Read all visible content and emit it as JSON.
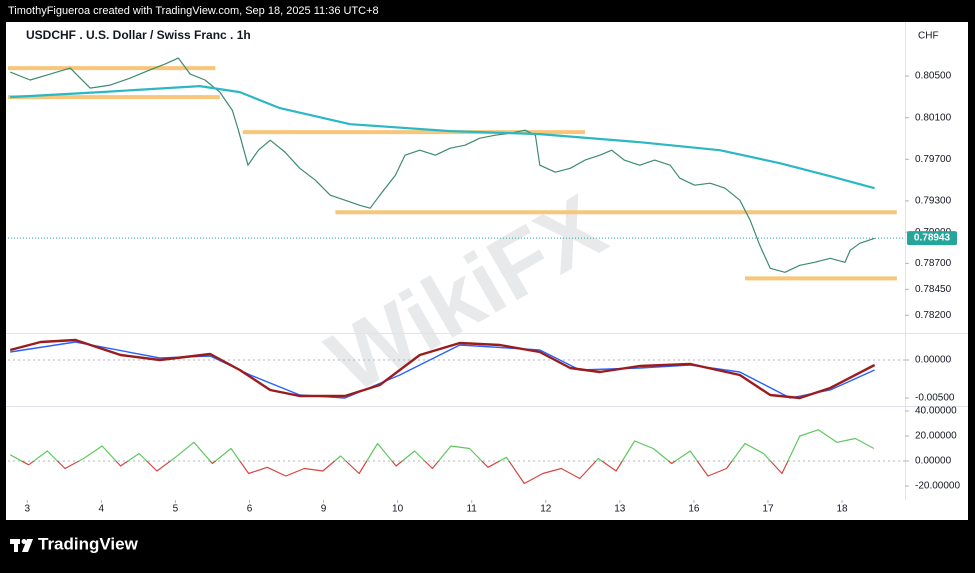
{
  "header": "TimothyFigueroa created with TradingView.com, Sep 18, 2025 11:36 UTC+8",
  "footer": "TradingView",
  "watermark": "WikiFX",
  "chart_data": [
    {
      "type": "line",
      "title": "USDCHF . U.S. Dollar / Swiss Franc . 1h",
      "ylabel": "CHF",
      "xlim": [
        -0.26,
        11.85
      ],
      "xticks": [
        {
          "value": 0,
          "label": "3"
        },
        {
          "value": 1,
          "label": "4"
        },
        {
          "value": 2,
          "label": "5"
        },
        {
          "value": 3,
          "label": "6"
        },
        {
          "value": 4,
          "label": "9"
        },
        {
          "value": 5,
          "label": "10"
        },
        {
          "value": 6,
          "label": "11"
        },
        {
          "value": 7,
          "label": "12"
        },
        {
          "value": 8,
          "label": "13"
        },
        {
          "value": 9,
          "label": "16"
        },
        {
          "value": 10,
          "label": "17"
        },
        {
          "value": 11,
          "label": "18"
        }
      ],
      "ylim": [
        0.7804,
        0.8102
      ],
      "yticks": [
        {
          "value": 0.805,
          "label": "0.80500"
        },
        {
          "value": 0.801,
          "label": "0.80100"
        },
        {
          "value": 0.797,
          "label": "0.79700"
        },
        {
          "value": 0.793,
          "label": "0.79300"
        },
        {
          "value": 0.79,
          "label": "0.79000"
        },
        {
          "value": 0.787,
          "label": "0.78700"
        },
        {
          "value": 0.7845,
          "label": "0.78450"
        },
        {
          "value": 0.782,
          "label": "0.78200"
        }
      ],
      "last_price": 0.78943,
      "last_price_color": "#26a69a",
      "levels_color": "#f7c67a",
      "levels": [
        {
          "value": 0.80577,
          "x": [
            -0.26,
            2.54
          ]
        },
        {
          "value": 0.80298,
          "x": [
            -0.26,
            2.6
          ]
        },
        {
          "value": 0.79961,
          "x": [
            2.91,
            7.53
          ]
        },
        {
          "value": 0.79191,
          "x": [
            4.16,
            11.74
          ]
        },
        {
          "value": 0.78556,
          "x": [
            9.69,
            11.74
          ]
        }
      ],
      "series": [
        {
          "color": "#3d8b6e",
          "width": 1.2,
          "x": [
            -0.23,
            0.04,
            0.31,
            0.58,
            0.85,
            1.12,
            1.39,
            1.65,
            1.86,
            2.04,
            2.2,
            2.4,
            2.6,
            2.77,
            2.85,
            2.98,
            3.12,
            3.28,
            3.48,
            3.68,
            3.89,
            4.09,
            4.29,
            4.49,
            4.63,
            4.76,
            4.97,
            5.1,
            5.3,
            5.51,
            5.71,
            5.91,
            6.11,
            6.32,
            6.52,
            6.72,
            6.86,
            6.92,
            7.13,
            7.33,
            7.53,
            7.73,
            7.89,
            8.06,
            8.27,
            8.47,
            8.68,
            8.81,
            9.01,
            9.22,
            9.42,
            9.62,
            9.76,
            9.89,
            10.03,
            10.23,
            10.43,
            10.63,
            10.84,
            11.04,
            11.11,
            11.24,
            11.44
          ],
          "values": [
            0.80538,
            0.80462,
            0.80519,
            0.80577,
            0.80385,
            0.80413,
            0.80481,
            0.80558,
            0.80615,
            0.80673,
            0.80519,
            0.80462,
            0.80346,
            0.8017,
            0.7998,
            0.79643,
            0.79788,
            0.79884,
            0.79769,
            0.79614,
            0.79499,
            0.79355,
            0.79307,
            0.79258,
            0.7923,
            0.79355,
            0.79547,
            0.7974,
            0.79788,
            0.7974,
            0.79807,
            0.79836,
            0.79903,
            0.79932,
            0.79951,
            0.7998,
            0.79932,
            0.79643,
            0.79576,
            0.79614,
            0.79692,
            0.7974,
            0.79788,
            0.79692,
            0.79643,
            0.79692,
            0.79643,
            0.79518,
            0.79451,
            0.7947,
            0.79422,
            0.79307,
            0.79114,
            0.78873,
            0.78652,
            0.78614,
            0.78681,
            0.7871,
            0.78748,
            0.7871,
            0.78825,
            0.78893,
            0.78941
          ]
        },
        {
          "color": "#2bb7c4",
          "width": 2.2,
          "x": [
            -0.23,
            0.99,
            2.33,
            2.87,
            3.41,
            4.36,
            5.71,
            6.92,
            8.27,
            9.35,
            10.16,
            10.84,
            11.44
          ],
          "values": [
            0.80298,
            0.80346,
            0.80404,
            0.80346,
            0.80192,
            0.80038,
            0.79971,
            0.79942,
            0.79865,
            0.79788,
            0.79663,
            0.79538,
            0.79422
          ]
        }
      ]
    },
    {
      "type": "line",
      "ylim": [
        -0.00592,
        0.00329
      ],
      "yticks": [
        {
          "value": 0,
          "label": "0.00000"
        },
        {
          "value": -0.005,
          "label": "-0.00500"
        }
      ],
      "series": [
        {
          "color": "#2962ff",
          "width": 1.4,
          "x": [
            -0.23,
            0.65,
            1.79,
            2.47,
            3.01,
            3.68,
            4.29,
            5.03,
            5.84,
            6.92,
            7.46,
            8.27,
            8.95,
            9.62,
            10.3,
            10.84,
            11.44
          ],
          "values": [
            0.00105,
            0.00237,
            0.00026,
            0.00053,
            -0.00197,
            -0.00461,
            -0.005,
            -0.00197,
            0.00197,
            0.00132,
            -0.00132,
            -0.00105,
            -0.00066,
            -0.00158,
            -0.005,
            -0.00395,
            -0.00132
          ]
        },
        {
          "color": "#9b1c1c",
          "width": 2.4,
          "x": [
            -0.23,
            0.18,
            0.65,
            1.26,
            1.79,
            2.47,
            2.87,
            3.28,
            3.68,
            4.29,
            4.76,
            5.3,
            5.84,
            6.38,
            6.92,
            7.33,
            7.73,
            8.27,
            8.95,
            9.62,
            10.03,
            10.43,
            10.84,
            11.44
          ],
          "values": [
            0.00132,
            0.00237,
            0.00263,
            0.00066,
            0,
            0.00079,
            -0.00132,
            -0.00395,
            -0.00474,
            -0.00474,
            -0.00329,
            0.00066,
            0.00224,
            0.00197,
            0.00105,
            -0.00105,
            -0.00158,
            -0.00079,
            -0.00053,
            -0.00197,
            -0.00461,
            -0.005,
            -0.00368,
            -0.00066
          ]
        }
      ]
    },
    {
      "type": "line",
      "ylim": [
        -31.2,
        42.4
      ],
      "yticks": [
        {
          "value": 40,
          "label": "40.00000"
        },
        {
          "value": 20,
          "label": "20.00000"
        },
        {
          "value": 0,
          "label": "0.00000"
        },
        {
          "value": -20,
          "label": "-20.00000"
        }
      ],
      "up_color": "#5ec85e",
      "down_color": "#d64541",
      "series": [
        {
          "color": "#5ec85e",
          "width": 1.2,
          "x": [
            -0.23,
            0.02,
            0.27,
            0.51,
            0.76,
            1.01,
            1.26,
            1.51,
            1.75,
            2.0,
            2.25,
            2.5,
            2.75,
            2.99,
            3.24,
            3.49,
            3.74,
            3.99,
            4.23,
            4.48,
            4.73,
            4.98,
            5.23,
            5.47,
            5.72,
            5.97,
            6.22,
            6.47,
            6.71,
            6.96,
            7.21,
            7.46,
            7.71,
            7.95,
            8.2,
            8.45,
            8.7,
            8.95,
            9.19,
            9.44,
            9.69,
            9.94,
            10.19,
            10.43,
            10.68,
            10.93,
            11.18,
            11.43
          ],
          "values": [
            5,
            -3,
            8,
            -6,
            2,
            12,
            -4,
            6,
            -8,
            3,
            15,
            -2,
            10,
            -10,
            -5,
            -12,
            -6,
            -8,
            4,
            -10,
            14,
            -4,
            8,
            -6,
            12,
            10,
            -5,
            3,
            -18,
            -10,
            -6,
            -14,
            2,
            -8,
            16,
            10,
            -2,
            8,
            -12,
            -6,
            14,
            6,
            -10,
            20,
            25,
            15,
            18,
            10
          ]
        }
      ]
    }
  ]
}
